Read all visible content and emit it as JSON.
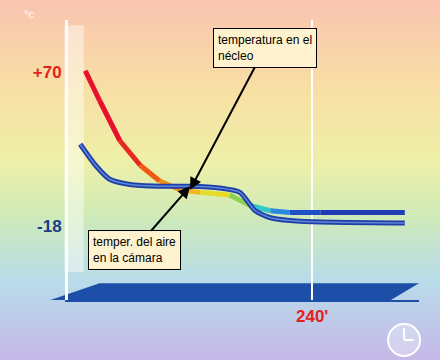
{
  "chart_data": {
    "type": "line",
    "ylabel": "°c",
    "xlim": [
      0,
      345
    ],
    "xticks": [
      {
        "value": 240,
        "label": "240'"
      }
    ],
    "ylim": [
      -60,
      100
    ],
    "yticks": [
      {
        "value": 70,
        "label": "+70"
      },
      -18
    ],
    "grid": "x",
    "series": [
      {
        "x": [
          17,
          31,
          51,
          71,
          90,
          110,
          130,
          159,
          179,
          199,
          218,
          248,
          287,
          331
        ],
        "values": [
          71,
          54,
          31,
          17,
          8,
          3,
          1.5,
          0,
          -6,
          -9,
          -10,
          -10,
          -10,
          -10
        ],
        "colors": [
          "#e8102a",
          "#e8102a",
          "#e82a1e",
          "#f05a14",
          "#f08c14",
          "#f5b41e",
          "#e6dc28",
          "#8cd250",
          "#32c8c8",
          "#2888e0",
          "#1e50c8",
          "#1e3cb4",
          "#1e3cb4",
          "#1e3cb4"
        ]
      },
      {
        "x": [
          12,
          27,
          41,
          61,
          90,
          120,
          149,
          169,
          184,
          199,
          228,
          331
        ],
        "values": [
          29,
          17,
          9,
          6,
          5,
          5,
          4,
          1.5,
          -9,
          -13,
          -15,
          -16
        ],
        "color": "#1f3fa6"
      }
    ],
    "annotations": [
      {
        "text": "temperatura en el\nnécleo",
        "x": 120,
        "y": 3
      },
      {
        "text": "temper. del aire\nen la cámara",
        "x": 120,
        "y": 5
      }
    ]
  }
}
